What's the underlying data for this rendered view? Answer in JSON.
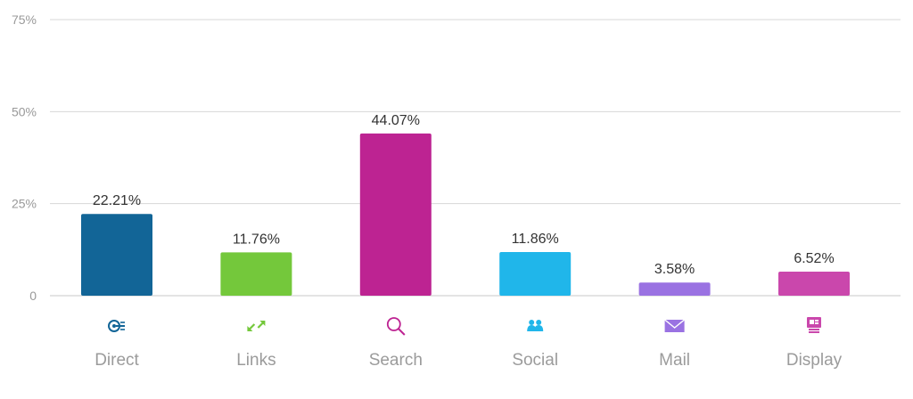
{
  "chart_data": {
    "type": "bar",
    "categories": [
      "Direct",
      "Links",
      "Search",
      "Social",
      "Mail",
      "Display"
    ],
    "values": [
      22.21,
      11.76,
      44.07,
      11.86,
      3.58,
      6.52
    ],
    "value_labels": [
      "22.21%",
      "11.76%",
      "44.07%",
      "11.86%",
      "3.58%",
      "6.52%"
    ],
    "bar_colors": [
      "#126597",
      "#74c83b",
      "#bd2392",
      "#20b6ea",
      "#9a72e2",
      "#ca47ac"
    ],
    "icons": [
      "direct-icon",
      "links-icon",
      "search-icon",
      "social-icon",
      "mail-icon",
      "display-icon"
    ],
    "yticks": [
      0,
      25,
      50,
      75
    ],
    "ytick_labels": [
      "0",
      "25%",
      "50%",
      "75%"
    ],
    "ylim": [
      0,
      75
    ],
    "grid": true
  }
}
